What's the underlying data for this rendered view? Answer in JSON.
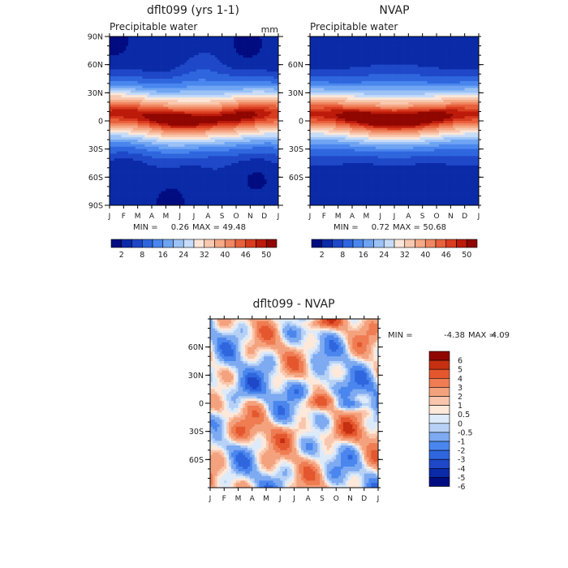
{
  "colors": {
    "seq": [
      "#000c80",
      "#0a2aa8",
      "#1f48c8",
      "#2f66de",
      "#4a86ee",
      "#6fa4f2",
      "#9cc2f6",
      "#c6dcf8",
      "#fbe6d8",
      "#f8c9b0",
      "#f5a987",
      "#f08762",
      "#e8613c",
      "#d93c1f",
      "#bc1b0b",
      "#8f0700"
    ],
    "diff": [
      "#000c80",
      "#0a2aa8",
      "#1f48c8",
      "#2f66de",
      "#4a86ee",
      "#7eaaf1",
      "#b7d1f6",
      "#dceafa",
      "#fde8da",
      "#f9c6ad",
      "#f4a27e",
      "#ef7c52",
      "#e4572e",
      "#c62f12",
      "#8f0700"
    ]
  },
  "chart_data": [
    {
      "id": "model",
      "type": "heatmap",
      "title": "dflt099 (yrs 1-1)",
      "subtitle": "Precipitable water",
      "units": "mm",
      "x": [
        "J",
        "F",
        "M",
        "A",
        "M",
        "J",
        "J",
        "A",
        "S",
        "O",
        "N",
        "D",
        "J"
      ],
      "y_ticks": [
        "90N",
        "60N",
        "30N",
        "0",
        "30S",
        "60S",
        "90S"
      ],
      "min_label": "MIN =",
      "min_value": "0.26",
      "max_label": "MAX =",
      "max_value": "49.48",
      "levels": [
        2,
        5,
        8,
        12,
        16,
        20,
        24,
        28,
        32,
        36,
        40,
        43,
        46,
        48,
        50
      ],
      "colorbar_labels": [
        "2",
        "8",
        "16",
        "24",
        "32",
        "40",
        "46",
        "50"
      ],
      "ylim": [
        -90,
        90
      ],
      "grid": false
    },
    {
      "id": "obs",
      "type": "heatmap",
      "title": "NVAP",
      "subtitle": "Precipitable water",
      "x": [
        "J",
        "F",
        "M",
        "A",
        "M",
        "J",
        "J",
        "A",
        "S",
        "O",
        "N",
        "D",
        "J"
      ],
      "y_ticks": [
        "60N",
        "30N",
        "0",
        "30S",
        "60S"
      ],
      "min_label": "MIN =",
      "min_value": "0.72",
      "max_label": "MAX =",
      "max_value": "50.68",
      "levels": [
        2,
        5,
        8,
        12,
        16,
        20,
        24,
        28,
        32,
        36,
        40,
        43,
        46,
        48,
        50
      ],
      "colorbar_labels": [
        "2",
        "8",
        "16",
        "24",
        "32",
        "40",
        "46",
        "50"
      ],
      "ylim": [
        -90,
        90
      ],
      "grid": false
    },
    {
      "id": "diff",
      "type": "heatmap",
      "title": "dflt099 - NVAP",
      "x": [
        "J",
        "F",
        "M",
        "A",
        "M",
        "J",
        "J",
        "A",
        "S",
        "O",
        "N",
        "D",
        "J"
      ],
      "y_ticks": [
        "60N",
        "30N",
        "0",
        "30S",
        "60S"
      ],
      "min_label": "MIN =",
      "min_value": "-4.38",
      "max_label": "MAX =",
      "max_value": "4.09",
      "levels": [
        -6,
        -5,
        -4,
        -3,
        -2,
        -1,
        -0.5,
        0,
        0.5,
        1,
        2,
        3,
        4,
        5,
        6
      ],
      "colorbar_labels": [
        "6",
        "5",
        "4",
        "3",
        "2",
        "1",
        "0.5",
        "0",
        "-0.5",
        "-1",
        "-2",
        "-3",
        "-4",
        "-5",
        "-6"
      ],
      "ylim": [
        -90,
        90
      ],
      "grid": false
    }
  ]
}
